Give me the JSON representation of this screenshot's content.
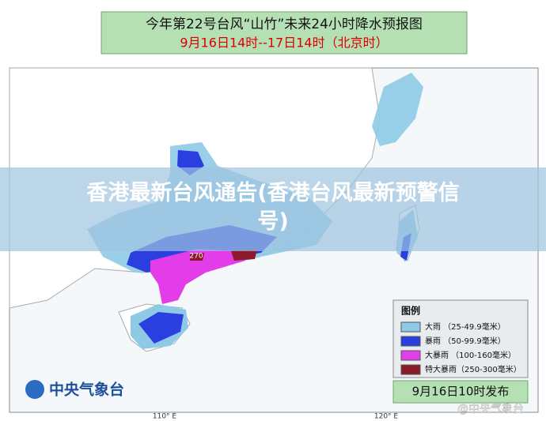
{
  "header": {
    "title": "今年第22号台风“山竹”未来24小时降水预报图",
    "subtitle": "9月16日14时--17日14时（北京时）"
  },
  "banner": "香港最新台风通告(香港台风最新预警信号)",
  "map": {
    "label": "270",
    "lon_labels": [
      "110° E",
      "120° E"
    ]
  },
  "legend": {
    "title": "图例",
    "items": [
      {
        "label": "大雨 （25-49.9毫米）",
        "color": "#8ecae6"
      },
      {
        "label": "暴雨 （50-99.9毫米）",
        "color": "#2b3fe0"
      },
      {
        "label": "大暴雨 （100-160毫米）",
        "color": "#e23de8"
      },
      {
        "label": "特大暴雨（250-300毫米）",
        "color": "#8b1a2a"
      }
    ]
  },
  "footer": {
    "logo": "中央气象台",
    "release": "9月16日10时发布",
    "watermark": "@中央气象台"
  }
}
